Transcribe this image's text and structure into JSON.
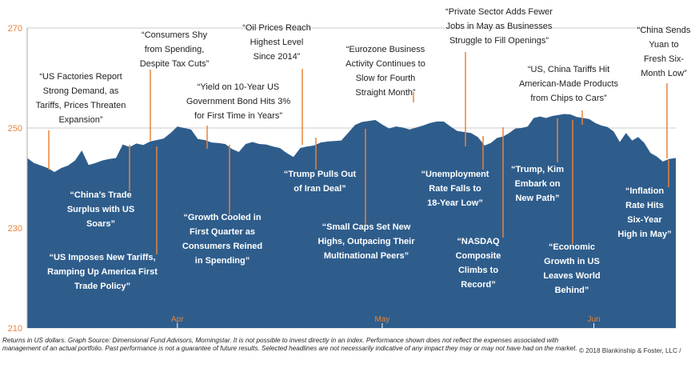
{
  "chart_data": {
    "type": "area",
    "ylim": [
      210,
      270
    ],
    "yticks": [
      "270",
      "250",
      "230",
      "210"
    ],
    "xticks": [
      {
        "label": "Apr",
        "day": 22
      },
      {
        "label": "May",
        "day": 52
      },
      {
        "label": "Jun",
        "day": 83
      }
    ],
    "grid": true,
    "colors": {
      "area": "#2e5d8c",
      "connector": "#e8833a",
      "axis_text": "#e8833a",
      "grid": "#cccccc"
    },
    "series": [
      {
        "x": [
          0,
          1,
          2,
          3,
          4,
          5,
          6,
          7,
          8,
          9,
          10,
          11,
          12,
          13,
          14,
          15,
          16,
          17,
          18,
          19,
          20,
          21,
          22,
          23,
          24,
          25,
          26,
          27,
          28,
          29,
          30,
          31,
          32,
          33,
          34,
          35,
          36,
          37,
          38,
          39,
          40,
          41,
          42,
          43,
          44,
          45,
          46,
          47,
          48,
          49,
          50,
          51,
          52,
          53,
          54,
          55,
          56,
          57,
          58,
          59,
          60,
          61,
          62,
          63,
          64,
          65,
          66,
          67,
          67.9,
          68.8,
          69.7,
          70.6,
          71.5,
          72.4,
          73.3,
          74.2,
          75.1,
          76,
          76.9,
          77.8,
          78.7,
          79.6,
          80.5,
          81.4,
          82.3,
          83.2,
          84.1,
          85,
          85.9,
          86.8,
          87.7,
          88.6,
          89.5,
          90.4,
          91.3,
          92.2,
          93.1,
          94,
          95
        ],
        "values": [
          244,
          243,
          242.5,
          242,
          241.2,
          242,
          242.5,
          243.5,
          245.5,
          242.6,
          243,
          243.5,
          243.8,
          244,
          246.7,
          246.2,
          246.9,
          246.6,
          247.3,
          247.6,
          247.9,
          249,
          250.3,
          250,
          249.7,
          247.8,
          247.6,
          247.1,
          247,
          246.8,
          245.8,
          245.2,
          246.8,
          247.2,
          246.8,
          246.7,
          246.3,
          246,
          245,
          244.2,
          246,
          246.3,
          246.5,
          247.1,
          247.3,
          247.4,
          247.5,
          249,
          250.6,
          251.2,
          251.4,
          251.6,
          250.7,
          249.9,
          250.3,
          250.1,
          249.7,
          250.1,
          250.5,
          251,
          251.3,
          251.3,
          250.3,
          249.4,
          249.2,
          249,
          248.2,
          246.5,
          247,
          248,
          248.3,
          249,
          249.9,
          250,
          250.3,
          252,
          252.3,
          252,
          252.4,
          252.6,
          252.8,
          252.7,
          252.2,
          252,
          251.8,
          251,
          250.5,
          250.2,
          249.3,
          247.2,
          249,
          247.5,
          248.2,
          247,
          245,
          244.3,
          243.3,
          243.8,
          244
        ]
      }
    ],
    "annotations": [
      {
        "lines": [
          "“US Factories Report",
          "Strong Demand, as",
          "Tariffs, Prices Threaten",
          "Expansion”"
        ],
        "day": 3,
        "value": 240,
        "y1": 247
      },
      {
        "lines": [
          "“China’s Trade",
          "Surplus with US",
          "Soars”"
        ],
        "day": 14,
        "value": 226,
        "y1": 246
      },
      {
        "lines": [
          "“US Imposes New Tariffs,",
          "Ramping Up America First",
          "Trade Policy”"
        ],
        "day": 19,
        "value": 221,
        "y1": 249
      },
      {
        "lines": [
          "“Consumers Shy",
          "from Spending,",
          "Despite Tax Cuts”"
        ],
        "day": 18,
        "value": 251,
        "y1": 247.8
      },
      {
        "lines": [
          "“Yield on 10-Year US",
          "Government Bond Hits 3%",
          "for First Time in Years”"
        ],
        "day": 26,
        "value": 248,
        "y1": 244.5
      },
      {
        "lines": [
          "“Growth Cooled in",
          "First Quarter as",
          "Consumers Reined",
          "in Spending”"
        ],
        "day": 30,
        "value": 227,
        "y1": 245.4
      },
      {
        "lines": [
          "“Oil Prices Reach",
          "Highest Level",
          "Since 2014”"
        ],
        "day": 41,
        "value": 244,
        "y1": 246.8
      },
      {
        "lines": [
          "“Trump Pulls Out",
          "of Iran Deal”"
        ],
        "day": 42,
        "value": 226,
        "y1": 244.5
      },
      {
        "lines": [
          "“Eurozone Business",
          "Activity Continues to",
          "Slow for Fourth",
          "Straight Month”"
        ],
        "day": 55,
        "value": 247,
        "y1": 251
      },
      {
        "lines": [
          "“Small Caps Set New",
          "Highs, Outpacing Their",
          "Multinational Peers”"
        ],
        "day": 49,
        "value": 246,
        "y1": 230.5
      },
      {
        "lines": [
          "“Private Sector Adds Fewer",
          "Jobs in May as Businesses",
          "Struggle to Fill Openings”"
        ],
        "day": 64,
        "value": 244,
        "y1": 247
      },
      {
        "lines": [
          "“Unemployment",
          "Rate Falls to",
          "18-Year Low”"
        ],
        "day": 66,
        "value": 244,
        "y1": 247.4
      },
      {
        "lines": [
          "“NASDAQ",
          "Composite",
          "Climbs to",
          "Record”"
        ],
        "day": 69.7,
        "value": 250,
        "y1": 219.5
      },
      {
        "lines": [
          "“US, China Tariffs Hit",
          "American-Made Products",
          "from Chips to Cars”"
        ],
        "day": 78.7,
        "value": 250,
        "y1": 252
      },
      {
        "lines": [
          "“Trump, Kim",
          "Embark on",
          "New Path”"
        ],
        "day": 75,
        "value": 244,
        "y1": 250.5
      },
      {
        "lines": [
          "“Economic",
          "Growth in US",
          "Leaves World",
          "Behind”"
        ],
        "day": 80.5,
        "value": 252,
        "y1": 220
      },
      {
        "lines": [
          "“China Sends",
          "Yuan to",
          "Fresh Six-",
          "Month Low”"
        ],
        "day": 93.8,
        "value": 242.6,
        "y1": 262.5
      },
      {
        "lines": [
          "“Inflation",
          "Rate Hits",
          "Six-Year",
          "High in May”"
        ],
        "day": 90,
        "value": 243,
        "y1": 244.3
      }
    ]
  },
  "footnote": "Returns in US dollars. Graph Source: Dimensional Fund Advisors, Morningstar. It is not possible to invest directly in an index. Performance shown does not reflect the expenses associated with management of an actual portfolio. Past performance is not a guarantee of future results. Selected headlines are not necessarily indicative of any impact they may or may not have had on the market.",
  "copyright": "© 2018 Blankinship & Foster, LLC /"
}
